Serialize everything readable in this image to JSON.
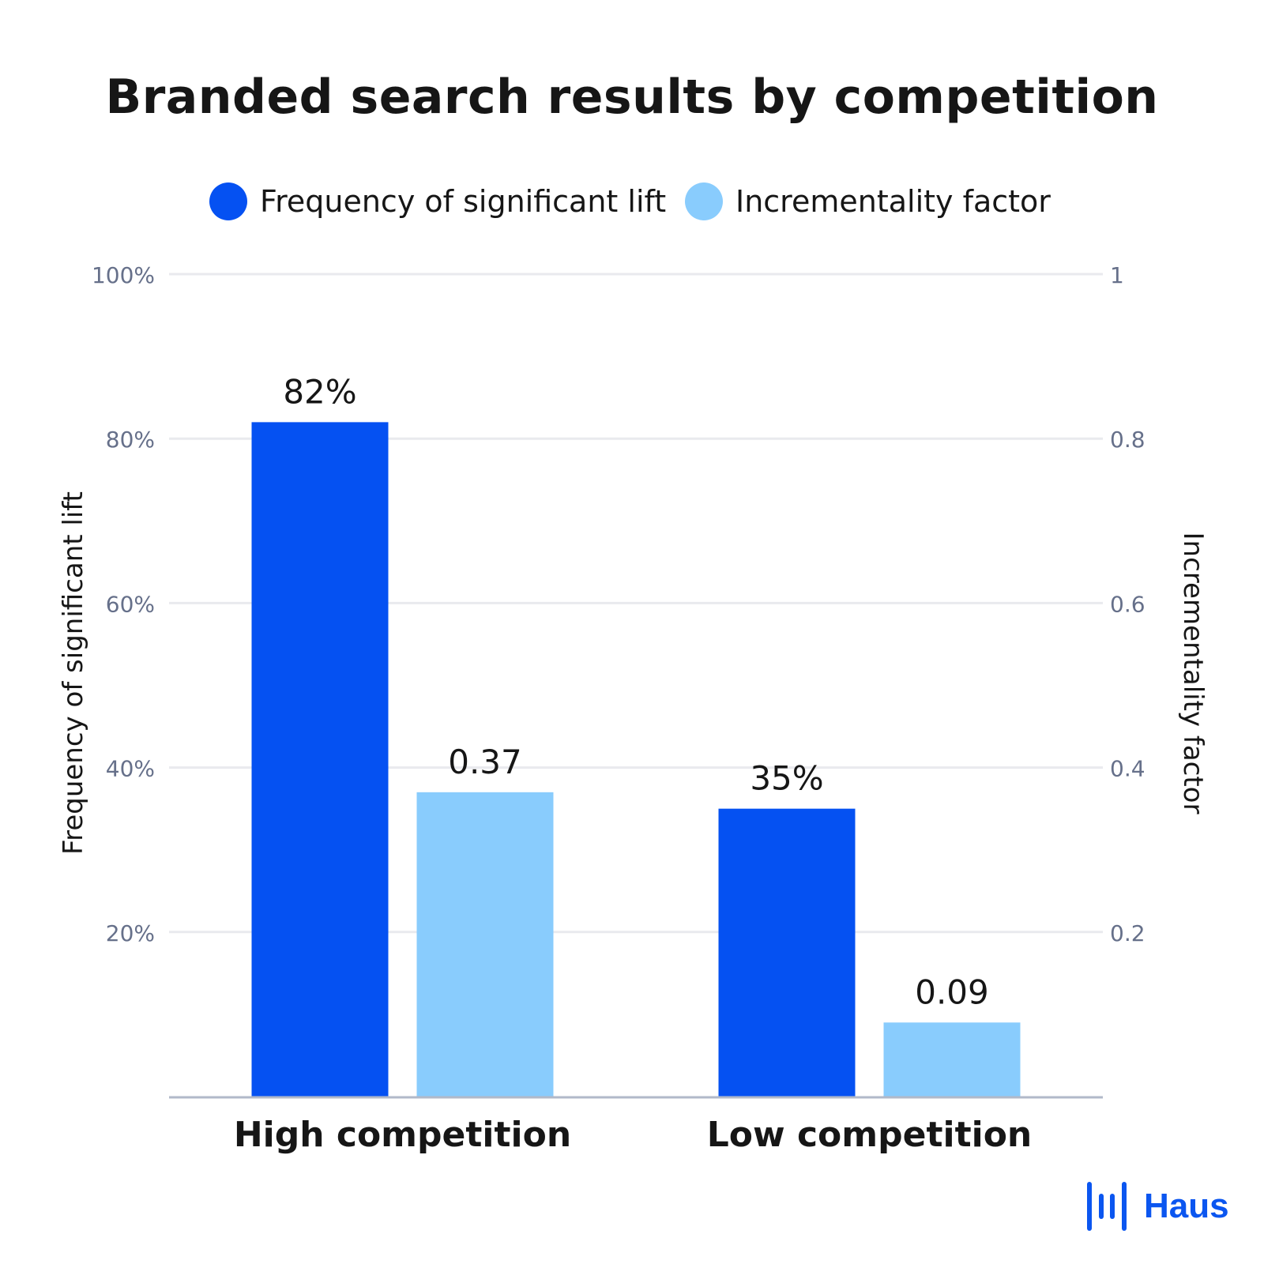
{
  "chart_data": {
    "type": "bar",
    "title": "Branded search results by competition",
    "categories": [
      "High competition",
      "Low competition"
    ],
    "series": [
      {
        "name": "Frequency of significant lift",
        "values": [
          82,
          35
        ],
        "labels": [
          "82%",
          "35%"
        ],
        "axis": "left",
        "color": "#0551f2"
      },
      {
        "name": "Incrementality factor",
        "values": [
          0.37,
          0.09
        ],
        "labels": [
          "0.37",
          "0.09"
        ],
        "axis": "right",
        "color": "#89ccfd"
      }
    ],
    "ylabel": "Frequency of significant lift",
    "ylabel_right": "Incrementality factor",
    "ylim": [
      0,
      100
    ],
    "ylim_right": [
      0,
      1
    ],
    "yticks": [
      20,
      40,
      60,
      80,
      100
    ],
    "yticks_labels": [
      "20%",
      "40%",
      "60%",
      "80%",
      "100%"
    ],
    "yticks_right": [
      0.2,
      0.4,
      0.6,
      0.8,
      1
    ],
    "yticks_right_labels": [
      "0.2",
      "0.4",
      "0.6",
      "0.8",
      "1"
    ],
    "grid": true,
    "legend_position": "top-center"
  },
  "colors": {
    "grid": "#e9eaee",
    "axis": "#b1b9c9",
    "tick_text": "#66708a",
    "text": "#161616",
    "brand": "#0b56f0"
  },
  "brand": {
    "name": "Haus",
    "icon": "haus-logo-icon"
  }
}
